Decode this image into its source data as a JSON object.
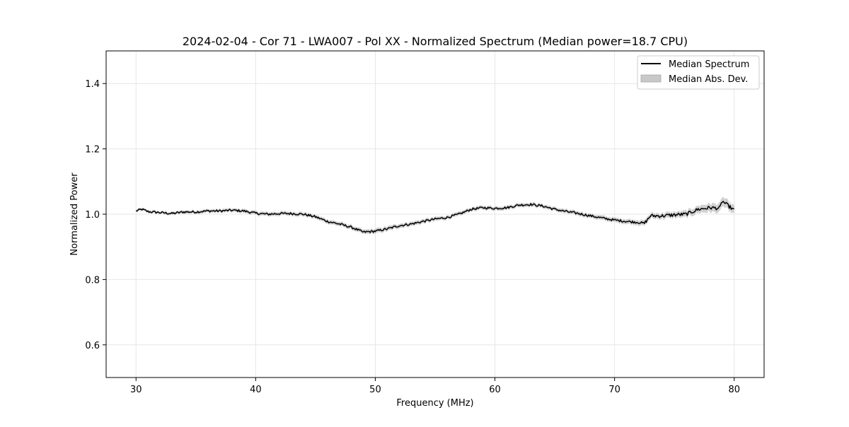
{
  "chart_data": {
    "type": "line",
    "title": "2024-02-04 - Cor 71 - LWA007 - Pol XX - Normalized Spectrum (Median power=18.7 CPU)",
    "xlabel": "Frequency (MHz)",
    "ylabel": "Normalized Power",
    "xlim": [
      27.5,
      82.5
    ],
    "ylim": [
      0.5,
      1.5
    ],
    "xticks": [
      30,
      40,
      50,
      60,
      70,
      80
    ],
    "yticks": [
      0.6,
      0.8,
      1.0,
      1.2,
      1.4
    ],
    "xtick_labels": [
      "30",
      "40",
      "50",
      "60",
      "70",
      "80"
    ],
    "ytick_labels": [
      "0.6",
      "0.8",
      "1.0",
      "1.2",
      "1.4"
    ],
    "grid": true,
    "legend": {
      "position": "top-right",
      "entries": [
        {
          "label": "Median Spectrum",
          "kind": "line",
          "color": "#000000"
        },
        {
          "label": "Median Abs. Dev.",
          "kind": "band",
          "color": "#c8c8c8"
        }
      ]
    },
    "series": [
      {
        "name": "Median Spectrum",
        "color": "#000000",
        "x": [
          30,
          30.5,
          31,
          32,
          33,
          34,
          35,
          36,
          37,
          38,
          39,
          40,
          41,
          42,
          43,
          44,
          45,
          46,
          47,
          48,
          49,
          50,
          51,
          52,
          53,
          54,
          55,
          56,
          57,
          58,
          59,
          60,
          61,
          62,
          63,
          64,
          65,
          66,
          67,
          68,
          69,
          70,
          71,
          72,
          72.5,
          73,
          74,
          75,
          76,
          77,
          78,
          78.8,
          79,
          80
        ],
        "values": [
          1.01,
          1.015,
          1.008,
          1.005,
          1.002,
          1.007,
          1.007,
          1.01,
          1.01,
          1.012,
          1.01,
          1.003,
          1.0,
          1.002,
          1.002,
          1.0,
          0.992,
          0.978,
          0.97,
          0.96,
          0.945,
          0.948,
          0.955,
          0.965,
          0.97,
          0.978,
          0.985,
          0.99,
          1.0,
          1.015,
          1.02,
          1.018,
          1.02,
          1.028,
          1.03,
          1.025,
          1.015,
          1.008,
          1.002,
          0.995,
          0.988,
          0.982,
          0.978,
          0.975,
          0.972,
          0.995,
          0.995,
          0.998,
          1.0,
          1.015,
          1.02,
          1.018,
          1.04,
          1.012
        ]
      },
      {
        "name": "Median Abs. Dev.",
        "color": "#c8c8c8",
        "x": [
          30,
          40,
          45,
          50,
          55,
          60,
          65,
          70,
          72.5,
          75,
          77,
          79,
          80
        ],
        "values": [
          0.004,
          0.006,
          0.006,
          0.007,
          0.006,
          0.006,
          0.006,
          0.007,
          0.008,
          0.009,
          0.011,
          0.014,
          0.013
        ]
      }
    ]
  }
}
